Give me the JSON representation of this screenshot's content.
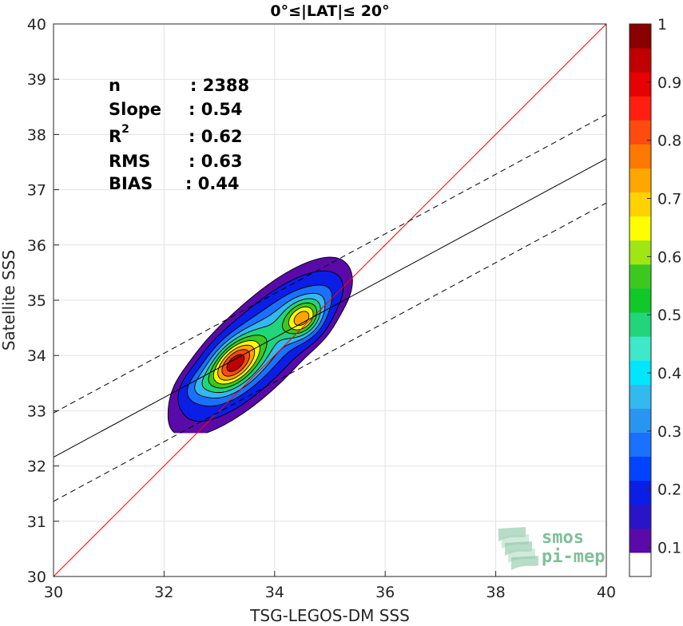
{
  "chart_data": {
    "type": "contour",
    "title": "0°≤|LAT|≤ 20°",
    "xlabel": "TSG-LEGOS-DM SSS",
    "ylabel": "Satellite SSS",
    "xlim": [
      30,
      40
    ],
    "ylim": [
      30,
      40
    ],
    "xticks": [
      "30",
      "32",
      "34",
      "36",
      "38",
      "40"
    ],
    "yticks": [
      "30",
      "31",
      "32",
      "33",
      "34",
      "35",
      "36",
      "37",
      "38",
      "39",
      "40"
    ],
    "grid": true,
    "stats": [
      {
        "key": "n",
        "value": ": 2388"
      },
      {
        "key": "Slope",
        "value": ": 0.54"
      },
      {
        "key": "R",
        "sup": "2",
        "value": ": 0.62"
      },
      {
        "key": "RMS",
        "value": ": 0.63"
      },
      {
        "key": "BIAS",
        "value": ": 0.44"
      }
    ],
    "lines": [
      {
        "name": "1:1",
        "color": "#ff0000",
        "style": "solid",
        "x": [
          30,
          40
        ],
        "y": [
          30,
          40
        ]
      },
      {
        "name": "fit",
        "color": "#000000",
        "style": "solid",
        "x": [
          30,
          40
        ],
        "y": [
          32.16,
          37.56
        ]
      },
      {
        "name": "fit+",
        "color": "#000000",
        "style": "dashed",
        "x": [
          30,
          40
        ],
        "y": [
          32.96,
          38.36
        ]
      },
      {
        "name": "fit-",
        "color": "#000000",
        "style": "dashed",
        "x": [
          30,
          40
        ],
        "y": [
          31.36,
          36.76
        ]
      }
    ],
    "density_peaks": [
      {
        "x": 33.25,
        "y": 33.85,
        "peak": 1.0
      },
      {
        "x": 34.52,
        "y": 34.66,
        "peak": 0.72
      }
    ],
    "contour_levels": [
      0.05,
      0.1,
      0.2,
      0.3,
      0.4,
      0.5,
      0.6,
      0.7,
      0.8,
      0.9
    ],
    "colorbar": {
      "ticks": [
        "0.1",
        "0.2",
        "0.3",
        "0.4",
        "0.5",
        "0.6",
        "0.7",
        "0.8",
        "0.9",
        "1"
      ],
      "colors": [
        "#ffffff",
        "#5a0aa8",
        "#2a14c8",
        "#0a1ee6",
        "#0044ff",
        "#1a70ff",
        "#2896f0",
        "#34b8f0",
        "#00e6ff",
        "#3ee8c8",
        "#22d47a",
        "#10c828",
        "#3cc81e",
        "#a0e614",
        "#ffff00",
        "#ffd200",
        "#ffa600",
        "#ff7800",
        "#ff4a10",
        "#ff1e10",
        "#e60000",
        "#c00000",
        "#8a0000"
      ]
    },
    "logo_lines": [
      "smos",
      "pi-mep"
    ]
  }
}
